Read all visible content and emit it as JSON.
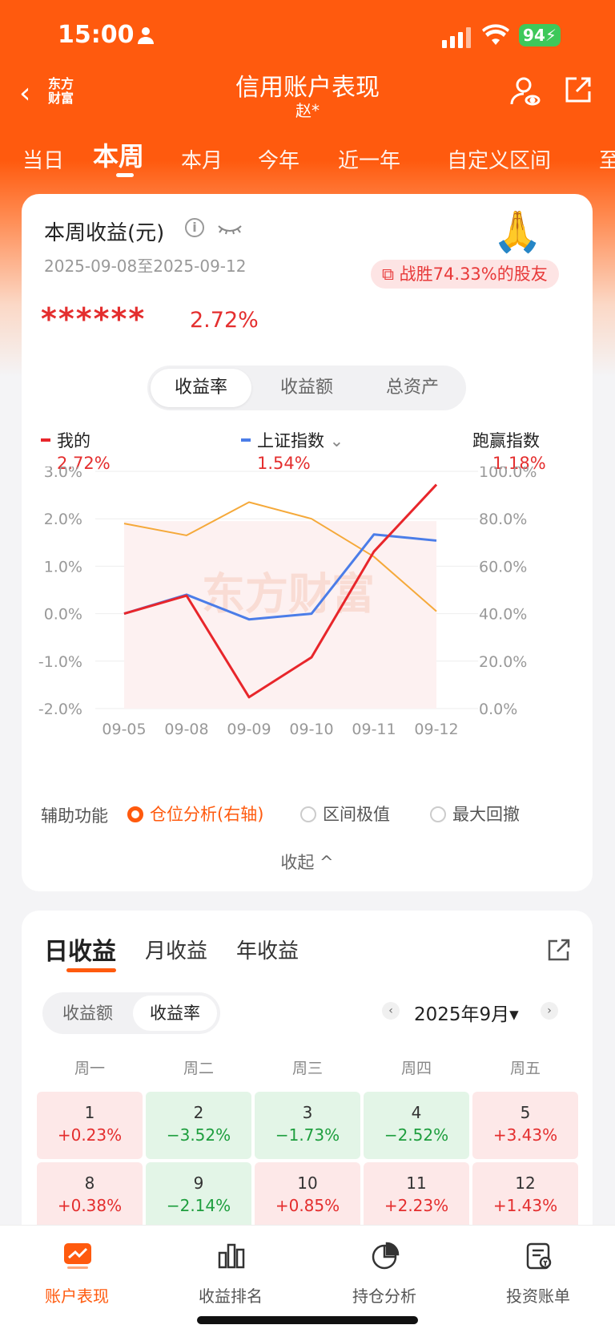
{
  "status": {
    "time": "15:00",
    "battery": "94"
  },
  "header": {
    "title": "信用账户表现",
    "subtitle": "赵*",
    "logo": "东方\n财富"
  },
  "tabs": [
    "当日",
    "本周",
    "本月",
    "今年",
    "近一年",
    "自定义区间",
    "至"
  ],
  "summary": {
    "title": "本周收益(元)",
    "date_range": "2025-09-08至2025-09-12",
    "beat": "战胜74.33%的股友",
    "amount": "******",
    "rate": "2.72%"
  },
  "segment": [
    "收益率",
    "收益额",
    "总资产"
  ],
  "legend": {
    "mine_label": "我的",
    "mine_value": "2.72%",
    "index_label": "上证指数",
    "index_value": "1.54%",
    "beat_label": "跑赢指数",
    "beat_value": "1.18%"
  },
  "chart_data": {
    "type": "line",
    "x": [
      "09-05",
      "09-08",
      "09-09",
      "09-10",
      "09-11",
      "09-12"
    ],
    "yleft_ticks": [
      "3.0%",
      "2.0%",
      "1.0%",
      "0.0%",
      "-1.0%",
      "-2.0%"
    ],
    "yright_ticks": [
      "100.0%",
      "80.0%",
      "60.0%",
      "40.0%",
      "20.0%",
      "0.0%"
    ],
    "ylim_left": [
      -2,
      3
    ],
    "ylim_right": [
      0,
      100
    ],
    "watermark": "东方财富",
    "series": [
      {
        "name": "我的",
        "axis": "left",
        "color": "#e8262b",
        "values": [
          0,
          0.38,
          -1.76,
          -0.92,
          1.31,
          2.72
        ]
      },
      {
        "name": "上证指数",
        "axis": "left",
        "color": "#4b7de8",
        "values": [
          0,
          0.4,
          -0.12,
          0.0,
          1.67,
          1.54
        ]
      },
      {
        "name": "仓位分析(右轴)",
        "axis": "right",
        "color": "#f5a93a",
        "values": [
          78,
          73,
          87,
          80,
          64,
          41
        ]
      }
    ]
  },
  "aux": {
    "label": "辅助功能",
    "opt1": "仓位分析(右轴)",
    "opt2": "区间极值",
    "opt3": "最大回撤",
    "collapse": "收起 ^"
  },
  "daily": {
    "tabs": [
      "日收益",
      "月收益",
      "年收益"
    ],
    "seg": [
      "收益额",
      "收益率"
    ],
    "month": "2025年9月▾",
    "weekdays": [
      "周一",
      "周二",
      "周三",
      "周四",
      "周五"
    ],
    "cells": [
      {
        "day": "1",
        "value": "+0.23%",
        "tone": "red"
      },
      {
        "day": "2",
        "value": "−3.52%",
        "tone": "grn"
      },
      {
        "day": "3",
        "value": "−1.73%",
        "tone": "grn"
      },
      {
        "day": "4",
        "value": "−2.52%",
        "tone": "grn"
      },
      {
        "day": "5",
        "value": "+3.43%",
        "tone": "red"
      },
      {
        "day": "8",
        "value": "+0.38%",
        "tone": "red"
      },
      {
        "day": "9",
        "value": "−2.14%",
        "tone": "grn"
      },
      {
        "day": "10",
        "value": "+0.85%",
        "tone": "red"
      },
      {
        "day": "11",
        "value": "+2.23%",
        "tone": "red"
      },
      {
        "day": "12",
        "value": "+1.43%",
        "tone": "red"
      }
    ]
  },
  "bottom_nav": [
    "账户表现",
    "收益排名",
    "持仓分析",
    "投资账单"
  ]
}
